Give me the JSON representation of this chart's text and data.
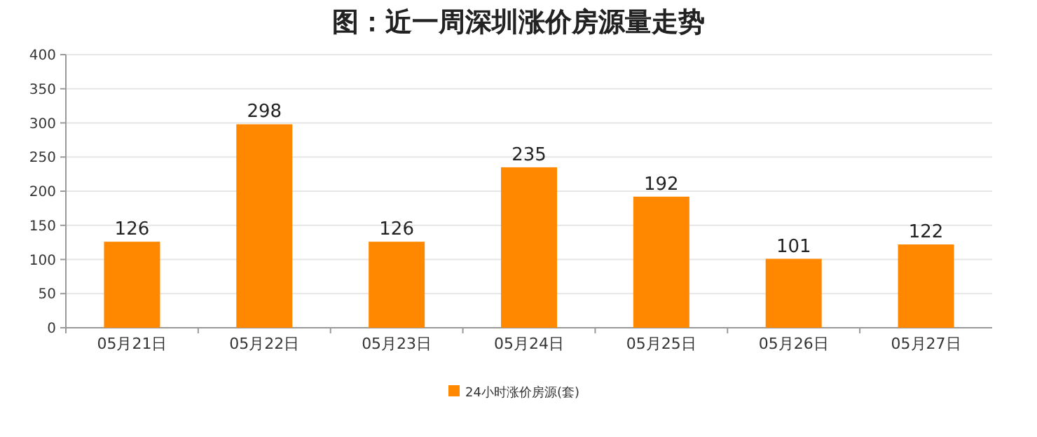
{
  "chart_data": {
    "type": "bar",
    "title": "图：近一周深圳涨价房源量走势",
    "categories": [
      "05月21日",
      "05月22日",
      "05月23日",
      "05月24日",
      "05月25日",
      "05月26日",
      "05月27日"
    ],
    "series": [
      {
        "name": "24小时涨价房源(套)",
        "color": "#ff8800",
        "values": [
          126,
          298,
          126,
          235,
          192,
          101,
          122
        ]
      }
    ],
    "ylim": [
      0,
      400
    ],
    "yticks": [
      0,
      50,
      100,
      150,
      200,
      250,
      300,
      350,
      400
    ],
    "grid": "y",
    "legend": "bottom",
    "data_labels": true
  }
}
